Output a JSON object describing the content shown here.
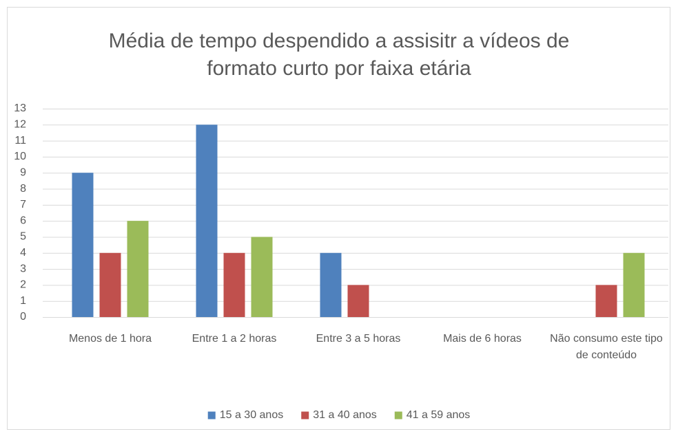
{
  "chart_data": {
    "type": "bar",
    "title": "Média de tempo despendido a assisitr a vídeos de formato curto por faixa etária",
    "categories": [
      "Menos de 1 hora",
      "Entre 1 a 2 horas",
      "Entre 3 a 5 horas",
      "Mais de 6 horas",
      "Não consumo este tipo de conteúdo"
    ],
    "series": [
      {
        "name": "15 a 30 anos",
        "color": "#4f81bd",
        "values": [
          9,
          12,
          4,
          0,
          0
        ]
      },
      {
        "name": "31 a 40 anos",
        "color": "#c0504d",
        "values": [
          4,
          4,
          2,
          0,
          2
        ]
      },
      {
        "name": "41 a 59 anos",
        "color": "#9bbb59",
        "values": [
          6,
          5,
          0,
          0,
          4
        ]
      }
    ],
    "ylim": [
      0,
      13
    ],
    "yticks": [
      0,
      1,
      2,
      3,
      4,
      5,
      6,
      7,
      8,
      9,
      10,
      11,
      12,
      13
    ],
    "grid": true,
    "legend": "bottom"
  }
}
